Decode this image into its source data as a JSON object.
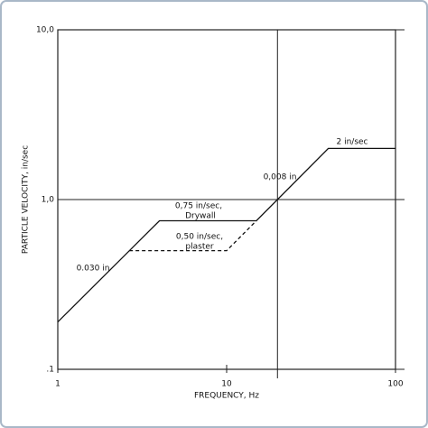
{
  "chart_data": {
    "type": "line",
    "x_label": "FREQUENCY, Hz",
    "y_label": "PARTICLE VELOCITY, in/sec",
    "xscale": "log",
    "yscale": "log",
    "xlim": [
      1,
      100
    ],
    "ylim": [
      0.1,
      10
    ],
    "xticks": [
      1,
      10,
      100
    ],
    "yticks": [
      {
        "value": 0.1,
        "label": ".1"
      },
      {
        "value": 1,
        "label": "1,0"
      },
      {
        "value": 10,
        "label": "10,0"
      }
    ],
    "grid_y": true,
    "x_reference_line": 20,
    "series": [
      {
        "name": "Drywall",
        "color": "#111111",
        "dash": false,
        "x": [
          1,
          4,
          15,
          40,
          100
        ],
        "values": [
          0.19,
          0.75,
          0.75,
          2,
          2
        ]
      },
      {
        "name": "plaster",
        "color": "#111111",
        "dash": true,
        "x": [
          2.65,
          10,
          15
        ],
        "values": [
          0.5,
          0.5,
          0.75
        ]
      }
    ],
    "annotations": [
      "0.030 in",
      "0,75 in/sec,",
      "Drywall",
      "0,50 in/sec,",
      "plaster",
      "0,008 in",
      "2 in/sec"
    ]
  }
}
